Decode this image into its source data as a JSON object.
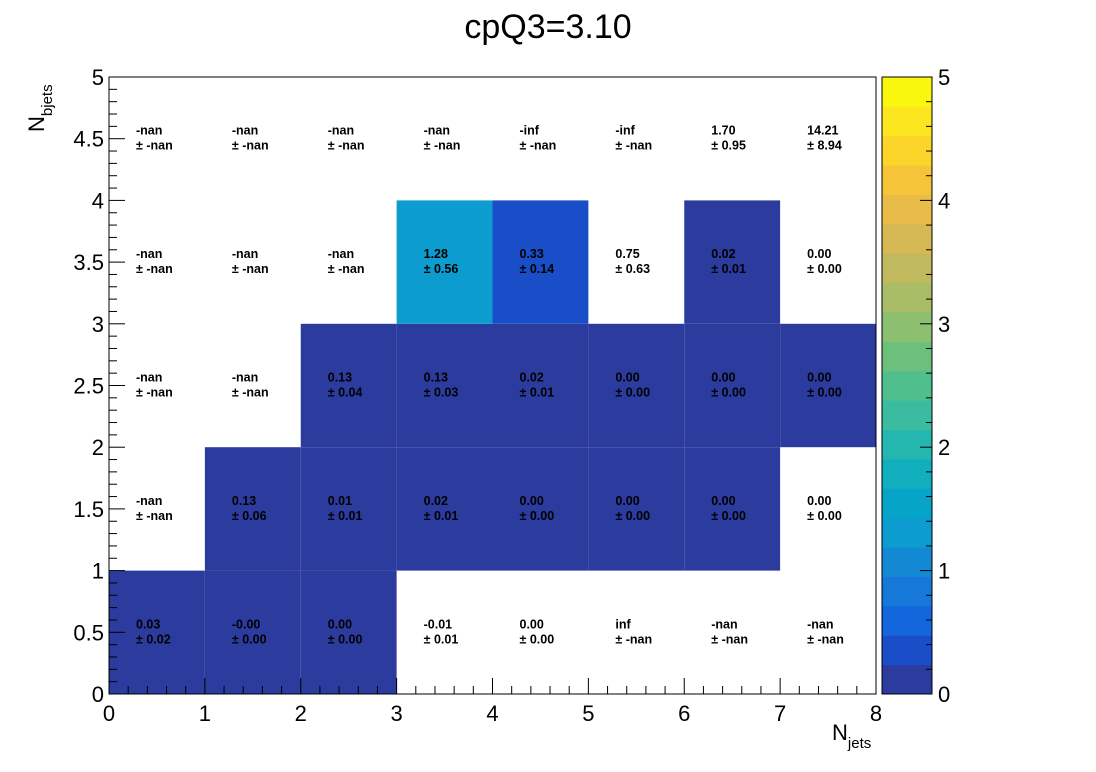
{
  "chart_data": {
    "type": "heatmap",
    "title": "cpQ3=3.10",
    "xlabel": {
      "main": "N",
      "sub": "jets"
    },
    "ylabel": {
      "main": "N",
      "sub": "bjets"
    },
    "xlim": [
      0,
      8
    ],
    "ylim": [
      0,
      5
    ],
    "zlim": [
      0,
      5
    ],
    "x_ticks": [
      "0",
      "1",
      "2",
      "3",
      "4",
      "5",
      "6",
      "7",
      "8"
    ],
    "y_ticks": [
      "0",
      "0.5",
      "1",
      "1.5",
      "2",
      "2.5",
      "3",
      "3.5",
      "4",
      "4.5",
      "5"
    ],
    "z_ticks": [
      "0",
      "1",
      "2",
      "3",
      "4",
      "5"
    ],
    "x_edges": [
      0,
      1,
      2,
      3,
      4,
      5,
      6,
      7,
      8
    ],
    "y_edges": [
      0,
      1,
      2,
      3,
      4,
      5
    ],
    "colormap": [
      "#2c3b9e",
      "#1a4ec9",
      "#1466dc",
      "#1678d8",
      "#1489d3",
      "#0c9cd0",
      "#06a5c7",
      "#11aebd",
      "#24b7b0",
      "#3bbca0",
      "#50bf8e",
      "#6dc07c",
      "#8cc070",
      "#a8bd65",
      "#c1b95e",
      "#d6b955",
      "#e9bb49",
      "#f6c438",
      "#fbd52a",
      "#fbe61f",
      "#f9f70e"
    ],
    "rows": [
      {
        "y": "0–1",
        "values": [
          0.03,
          -0.0,
          0.0,
          -0.01,
          0.0,
          null,
          null,
          null
        ],
        "filled": [
          true,
          true,
          true,
          false,
          false,
          false,
          false,
          false
        ],
        "labels": [
          "0.03",
          "-0.00",
          "0.00",
          "-0.01",
          "0.00",
          "inf",
          "-nan",
          "-nan"
        ],
        "errors": [
          "± 0.02",
          "± 0.00",
          "± 0.00",
          "± 0.01",
          "± 0.00",
          "± -nan",
          "± -nan",
          "± -nan"
        ]
      },
      {
        "y": "1–2",
        "values": [
          null,
          0.13,
          0.01,
          0.02,
          0.0,
          0.0,
          0.0,
          0.0
        ],
        "filled": [
          false,
          true,
          true,
          true,
          true,
          true,
          true,
          false
        ],
        "labels": [
          "-nan",
          "0.13",
          "0.01",
          "0.02",
          "0.00",
          "0.00",
          "0.00",
          "0.00"
        ],
        "errors": [
          "± -nan",
          "± 0.06",
          "± 0.01",
          "± 0.01",
          "± 0.00",
          "± 0.00",
          "± 0.00",
          "± 0.00"
        ]
      },
      {
        "y": "2–3",
        "values": [
          null,
          null,
          0.13,
          0.13,
          0.02,
          0.0,
          0.0,
          0.0
        ],
        "filled": [
          false,
          false,
          true,
          true,
          true,
          true,
          true,
          true
        ],
        "labels": [
          "-nan",
          "-nan",
          "0.13",
          "0.13",
          "0.02",
          "0.00",
          "0.00",
          "0.00"
        ],
        "errors": [
          "± -nan",
          "± -nan",
          "± 0.04",
          "± 0.03",
          "± 0.01",
          "± 0.00",
          "± 0.00",
          "± 0.00"
        ]
      },
      {
        "y": "3–4",
        "values": [
          null,
          null,
          null,
          1.28,
          0.33,
          0.75,
          0.02,
          0.0
        ],
        "filled": [
          false,
          false,
          false,
          true,
          true,
          false,
          true,
          false
        ],
        "labels": [
          "-nan",
          "-nan",
          "-nan",
          "1.28",
          "0.33",
          "0.75",
          "0.02",
          "0.00"
        ],
        "errors": [
          "± -nan",
          "± -nan",
          "± -nan",
          "± 0.56",
          "± 0.14",
          "± 0.63",
          "± 0.01",
          "± 0.00"
        ]
      },
      {
        "y": "4–5",
        "values": [
          null,
          null,
          null,
          null,
          null,
          null,
          1.7,
          14.21
        ],
        "filled": [
          false,
          false,
          false,
          false,
          false,
          false,
          false,
          false
        ],
        "labels": [
          "-nan",
          "-nan",
          "-nan",
          "-nan",
          "-inf",
          "-inf",
          "1.70",
          "14.21"
        ],
        "errors": [
          "± -nan",
          "± -nan",
          "± -nan",
          "± -nan",
          "± -nan",
          "± -nan",
          "± 0.95",
          "± 8.94"
        ]
      }
    ]
  }
}
